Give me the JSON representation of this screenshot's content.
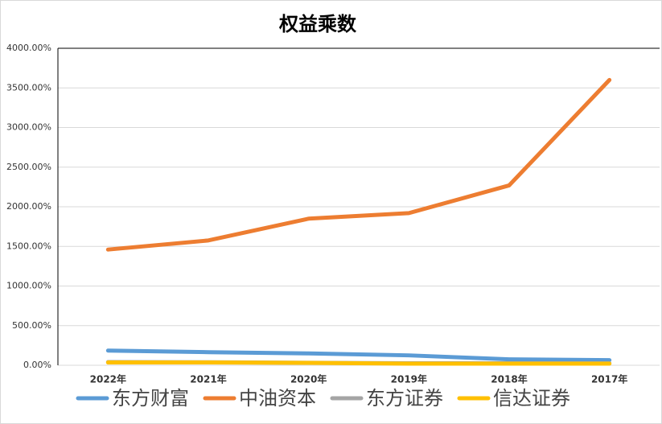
{
  "chart_data": {
    "type": "line",
    "title": "权益乘数",
    "categories": [
      "2022年",
      "2021年",
      "2020年",
      "2019年",
      "2018年",
      "2017年"
    ],
    "series": [
      {
        "name": "东方财富",
        "color": "#5b9bd5",
        "values": [
          185,
          165,
          150,
          125,
          75,
          65
        ]
      },
      {
        "name": "中油资本",
        "color": "#ed7d31",
        "values": [
          1460,
          1575,
          1850,
          1920,
          2270,
          3600
        ]
      },
      {
        "name": "东方证券",
        "color": "#a5a5a5",
        "values": [
          40,
          38,
          32,
          25,
          25,
          25
        ]
      },
      {
        "name": "信达证券",
        "color": "#ffc000",
        "values": [
          35,
          35,
          30,
          20,
          20,
          20
        ]
      }
    ],
    "ylim": [
      0,
      4000
    ],
    "yticks": [
      {
        "value": 0,
        "label": "0.00%"
      },
      {
        "value": 500,
        "label": "500.00%"
      },
      {
        "value": 1000,
        "label": "1000.00%"
      },
      {
        "value": 1500,
        "label": "1500.00%"
      },
      {
        "value": 2000,
        "label": "2000.00%"
      },
      {
        "value": 2500,
        "label": "2500.00%"
      },
      {
        "value": 3000,
        "label": "3000.00%"
      },
      {
        "value": 3500,
        "label": "3500.00%"
      },
      {
        "value": 4000,
        "label": "4000.00%"
      }
    ],
    "grid": true,
    "legend": "bottom"
  }
}
